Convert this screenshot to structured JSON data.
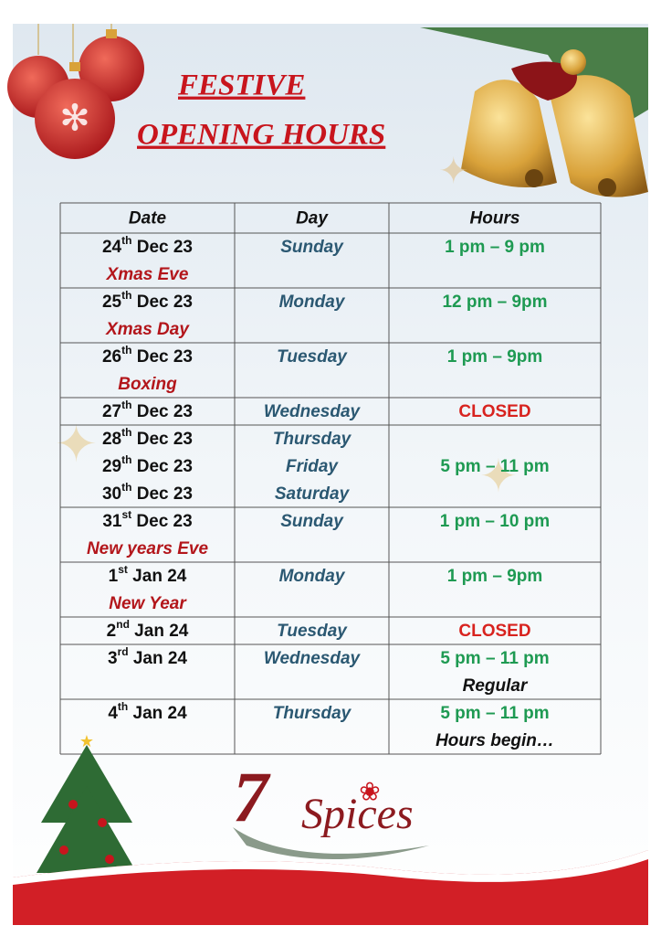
{
  "header": {
    "title_line1": "FESTIVE",
    "title_line2": "OPENING HOURS"
  },
  "table": {
    "columns": [
      "Date",
      "Day",
      "Hours"
    ],
    "rows": [
      {
        "dates": [
          {
            "day": "24",
            "suffix": "th",
            "rest": "Dec 23"
          }
        ],
        "note": "Xmas Eve",
        "days": [
          "Sunday"
        ],
        "hours": [
          {
            "text": "1 pm – 9 pm",
            "color": "#1e9a52"
          }
        ]
      },
      {
        "dates": [
          {
            "day": "25",
            "suffix": "th",
            "rest": "Dec 23"
          }
        ],
        "note": "Xmas Day",
        "days": [
          "Monday"
        ],
        "hours": [
          {
            "text": "12 pm – 9pm",
            "color": "#1e9a52"
          }
        ]
      },
      {
        "dates": [
          {
            "day": "26",
            "suffix": "th",
            "rest": "Dec 23"
          }
        ],
        "note": "Boxing",
        "days": [
          "Tuesday"
        ],
        "hours": [
          {
            "text": "1 pm – 9pm",
            "color": "#1e9a52"
          }
        ]
      },
      {
        "dates": [
          {
            "day": "27",
            "suffix": "th",
            "rest": "Dec 23"
          }
        ],
        "days": [
          "Wednesday"
        ],
        "hours": [
          {
            "text": "CLOSED",
            "color": "#d8231f"
          }
        ]
      },
      {
        "dates": [
          {
            "day": "28",
            "suffix": "th",
            "rest": "Dec 23"
          },
          {
            "day": "29",
            "suffix": "th",
            "rest": "Dec 23"
          },
          {
            "day": "30",
            "suffix": "th",
            "rest": "Dec 23"
          }
        ],
        "days": [
          "Thursday",
          "Friday",
          "Saturday"
        ],
        "hours": [
          {
            "text": "5 pm – 11 pm",
            "color": "#1e9a52"
          }
        ]
      },
      {
        "dates": [
          {
            "day": "31",
            "suffix": "st",
            "rest": "Dec 23"
          }
        ],
        "note": "New years Eve",
        "days": [
          "Sunday"
        ],
        "hours": [
          {
            "text": "1 pm – 10 pm",
            "color": "#1e9a52"
          }
        ]
      },
      {
        "dates": [
          {
            "day": "1",
            "suffix": "st",
            "rest": "Jan 24"
          }
        ],
        "note": "New Year",
        "days": [
          "Monday"
        ],
        "hours": [
          {
            "text": "1 pm – 9pm",
            "color": "#1e9a52"
          }
        ]
      },
      {
        "dates": [
          {
            "day": "2",
            "suffix": "nd",
            "rest": "Jan 24"
          }
        ],
        "days": [
          "Tuesday"
        ],
        "hours": [
          {
            "text": "CLOSED",
            "color": "#d8231f"
          }
        ]
      },
      {
        "dates": [
          {
            "day": "3",
            "suffix": "rd",
            "rest": "Jan 24"
          }
        ],
        "days": [
          "Wednesday"
        ],
        "hours": [
          {
            "text": "5 pm – 11 pm",
            "color": "#1e9a52"
          },
          {
            "text": "Regular",
            "color": "#111111"
          }
        ]
      },
      {
        "dates": [
          {
            "day": "4",
            "suffix": "th",
            "rest": "Jan 24"
          }
        ],
        "days": [
          "Thursday"
        ],
        "hours": [
          {
            "text": "5 pm – 11 pm",
            "color": "#1e9a52"
          },
          {
            "text": "Hours begin…",
            "color": "#111111"
          }
        ]
      }
    ]
  },
  "logo": {
    "number": "7",
    "name": "Spices"
  }
}
